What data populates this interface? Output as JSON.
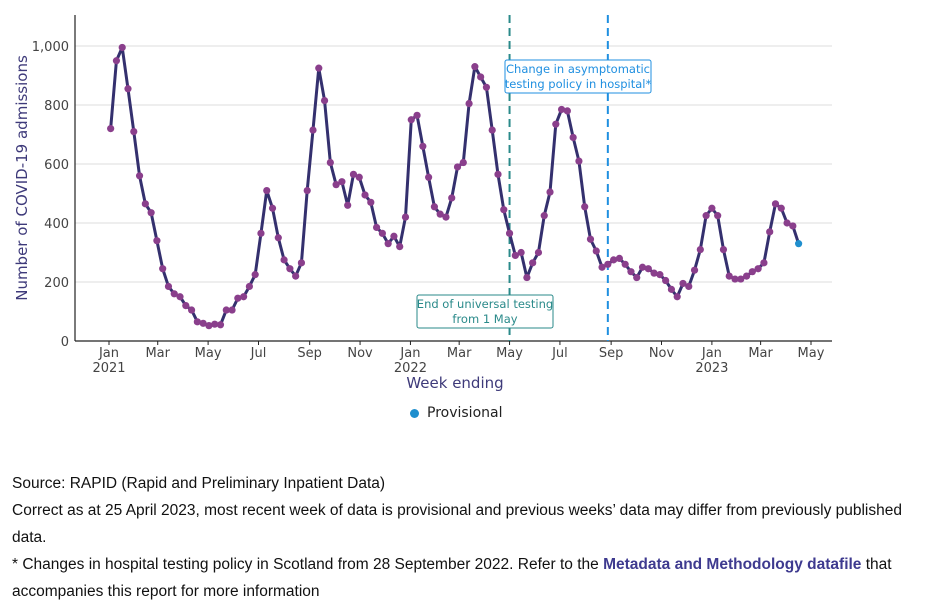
{
  "chart_data": {
    "type": "line",
    "xlabel": "Week ending",
    "ylabel": "Number of COVID-19 admissions",
    "ylim": [
      0,
      1100
    ],
    "yticks": [
      0,
      200,
      400,
      600,
      800,
      1000
    ],
    "ytick_labels": [
      "0",
      "200",
      "400",
      "600",
      "800",
      "1,000"
    ],
    "xticks": [
      {
        "date": "2021-01-01",
        "label": "Jan",
        "sub": "2021"
      },
      {
        "date": "2021-03-01",
        "label": "Mar"
      },
      {
        "date": "2021-05-01",
        "label": "May"
      },
      {
        "date": "2021-07-01",
        "label": "Jul"
      },
      {
        "date": "2021-09-01",
        "label": "Sep"
      },
      {
        "date": "2021-11-01",
        "label": "Nov"
      },
      {
        "date": "2022-01-01",
        "label": "Jan",
        "sub": "2022"
      },
      {
        "date": "2022-03-01",
        "label": "Mar"
      },
      {
        "date": "2022-05-01",
        "label": "May"
      },
      {
        "date": "2022-07-01",
        "label": "Jul"
      },
      {
        "date": "2022-09-01",
        "label": "Sep"
      },
      {
        "date": "2022-11-01",
        "label": "Nov"
      },
      {
        "date": "2023-01-01",
        "label": "Jan",
        "sub": "2023"
      },
      {
        "date": "2023-03-01",
        "label": "Mar"
      },
      {
        "date": "2023-05-01",
        "label": "May"
      }
    ],
    "grid": true,
    "line_color": "#34306e",
    "point_color": "#8a3f8c",
    "provisional_color": "#1f8fce",
    "x": [
      "2021-01-03",
      "2021-01-10",
      "2021-01-17",
      "2021-01-24",
      "2021-01-31",
      "2021-02-07",
      "2021-02-14",
      "2021-02-21",
      "2021-02-28",
      "2021-03-07",
      "2021-03-14",
      "2021-03-21",
      "2021-03-28",
      "2021-04-04",
      "2021-04-11",
      "2021-04-18",
      "2021-04-25",
      "2021-05-02",
      "2021-05-09",
      "2021-05-16",
      "2021-05-23",
      "2021-05-30",
      "2021-06-06",
      "2021-06-13",
      "2021-06-20",
      "2021-06-27",
      "2021-07-04",
      "2021-07-11",
      "2021-07-18",
      "2021-07-25",
      "2021-08-01",
      "2021-08-08",
      "2021-08-15",
      "2021-08-22",
      "2021-08-29",
      "2021-09-05",
      "2021-09-12",
      "2021-09-19",
      "2021-09-26",
      "2021-10-03",
      "2021-10-10",
      "2021-10-17",
      "2021-10-24",
      "2021-10-31",
      "2021-11-07",
      "2021-11-14",
      "2021-11-21",
      "2021-11-28",
      "2021-12-05",
      "2021-12-12",
      "2021-12-19",
      "2021-12-26",
      "2022-01-02",
      "2022-01-09",
      "2022-01-16",
      "2022-01-23",
      "2022-01-30",
      "2022-02-06",
      "2022-02-13",
      "2022-02-20",
      "2022-02-27",
      "2022-03-06",
      "2022-03-13",
      "2022-03-20",
      "2022-03-27",
      "2022-04-03",
      "2022-04-10",
      "2022-04-17",
      "2022-04-24",
      "2022-05-01",
      "2022-05-08",
      "2022-05-15",
      "2022-05-22",
      "2022-05-29",
      "2022-06-05",
      "2022-06-12",
      "2022-06-19",
      "2022-06-26",
      "2022-07-03",
      "2022-07-10",
      "2022-07-17",
      "2022-07-24",
      "2022-07-31",
      "2022-08-07",
      "2022-08-14",
      "2022-08-21",
      "2022-08-28",
      "2022-09-04",
      "2022-09-11",
      "2022-09-18",
      "2022-09-25",
      "2022-10-02",
      "2022-10-09",
      "2022-10-16",
      "2022-10-23",
      "2022-10-30",
      "2022-11-06",
      "2022-11-13",
      "2022-11-20",
      "2022-11-27",
      "2022-12-04",
      "2022-12-11",
      "2022-12-18",
      "2022-12-25",
      "2023-01-01",
      "2023-01-08",
      "2023-01-15",
      "2023-01-22",
      "2023-01-29",
      "2023-02-05",
      "2023-02-12",
      "2023-02-19",
      "2023-02-26",
      "2023-03-05",
      "2023-03-12",
      "2023-03-19",
      "2023-03-26",
      "2023-04-02",
      "2023-04-09",
      "2023-04-16"
    ],
    "values": [
      720,
      950,
      995,
      855,
      710,
      560,
      465,
      435,
      340,
      245,
      185,
      160,
      150,
      120,
      105,
      65,
      60,
      52,
      57,
      55,
      105,
      105,
      145,
      150,
      185,
      225,
      365,
      510,
      450,
      350,
      275,
      245,
      220,
      265,
      510,
      715,
      925,
      815,
      605,
      530,
      540,
      460,
      565,
      555,
      495,
      470,
      385,
      365,
      330,
      355,
      320,
      420,
      750,
      765,
      660,
      555,
      455,
      430,
      420,
      485,
      590,
      605,
      805,
      930,
      895,
      860,
      715,
      565,
      445,
      365,
      290,
      300,
      215,
      265,
      300,
      425,
      505,
      735,
      785,
      780,
      690,
      610,
      455,
      345,
      305,
      250,
      260,
      275,
      280,
      260,
      235,
      215,
      250,
      245,
      230,
      225,
      205,
      175,
      150,
      195,
      185,
      240,
      310,
      425,
      450,
      425,
      310,
      220,
      210,
      210,
      220,
      235,
      245,
      265,
      370,
      465,
      450,
      400,
      390,
      330
    ],
    "provisional_last_point": true,
    "annotations": [
      {
        "date": "2022-05-01",
        "text1": "End of universal testing",
        "text2": "from 1 May",
        "color": "#2a8a8a"
      },
      {
        "date": "2022-08-28",
        "text1": "Change in asymptomatic",
        "text2": "testing policy in hospital*",
        "color": "#1f8fe0"
      }
    ],
    "legend": {
      "label": "Provisional",
      "placement": "bottom"
    }
  },
  "notes": {
    "source": "Source: RAPID (Rapid and Preliminary Inpatient Data)",
    "correct": "Correct as at 25 April 2023, most recent week of data is provisional and previous weeks’ data may differ from previously published data.",
    "policy_pre": "* Changes in hospital testing policy in Scotland from 28 September 2022. Refer to the ",
    "policy_link": "Metadata and Methodology datafile",
    "policy_post": " that accompanies this report for more information"
  }
}
